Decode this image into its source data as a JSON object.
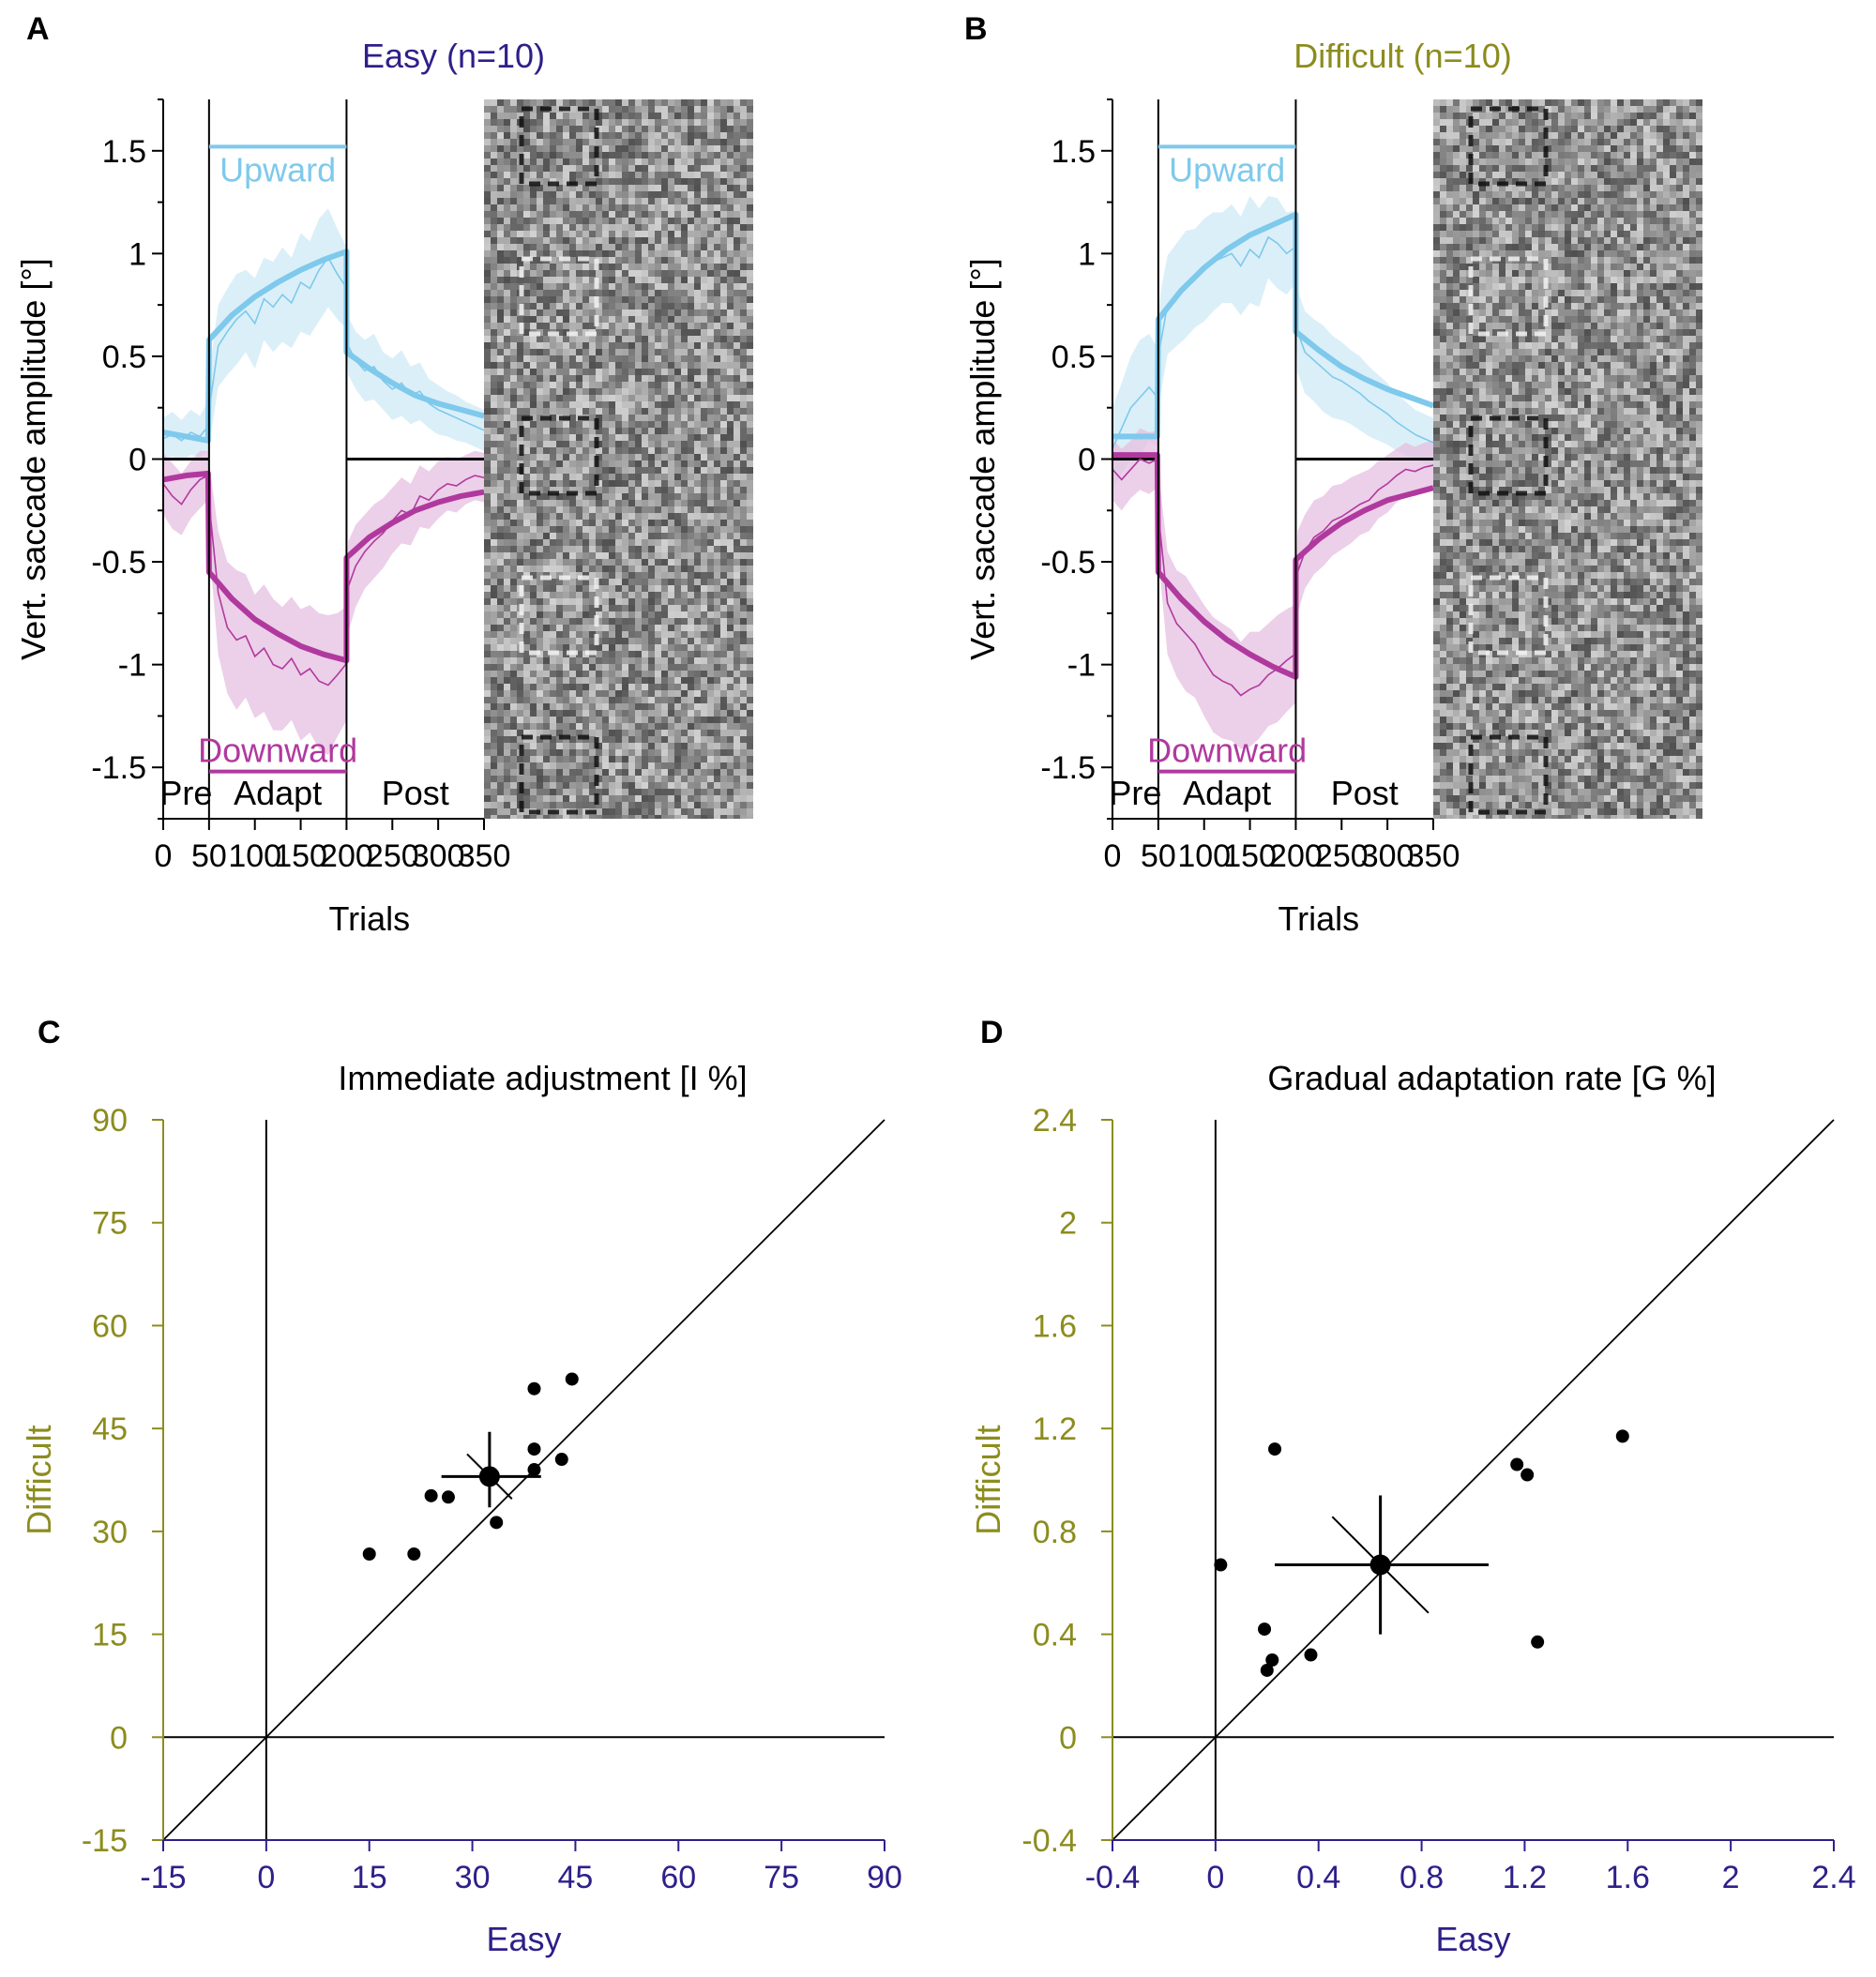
{
  "colors": {
    "easy": "#2e1f8a",
    "difficult": "#8c8c1f",
    "upward": "#7ec9ec",
    "upward_band": "#cfe9f6",
    "downward": "#b0399e",
    "downward_band": "#e6bfe0",
    "axis": "#000000"
  },
  "chart_data": [
    {
      "panel": "A",
      "type": "line",
      "title": "Easy (n=10)",
      "xlabel": "Trials",
      "ylabel": "Vert. saccade amplitude [°]",
      "xlim": [
        0,
        350
      ],
      "ylim": [
        -1.75,
        1.75
      ],
      "xticks": [
        "0",
        "50",
        "100",
        "150",
        "200",
        "250",
        "300",
        "350"
      ],
      "yticks": [
        "1.5",
        "1",
        "0.5",
        "0",
        "-0.5",
        "-1",
        "-1.5"
      ],
      "phase_labels": [
        "Pre",
        "Adapt",
        "Post"
      ],
      "phase_bounds": [
        0,
        50,
        200,
        350
      ],
      "upward_label": "Upward",
      "downward_label": "Downward",
      "upward_target_level": 1.52,
      "downward_target_level": -1.52,
      "series": [
        {
          "name": "Upward fit",
          "segments": [
            {
              "x": [
                0,
                25,
                49
              ],
              "y": [
                0.13,
                0.11,
                0.09
              ]
            },
            {
              "x": [
                50,
                75,
                100,
                125,
                150,
                175,
                200
              ],
              "y": [
                0.58,
                0.7,
                0.79,
                0.86,
                0.92,
                0.97,
                1.01
              ]
            },
            {
              "x": [
                200,
                225,
                250,
                275,
                300,
                325,
                350
              ],
              "y": [
                0.52,
                0.44,
                0.37,
                0.31,
                0.27,
                0.24,
                0.21
              ]
            }
          ]
        },
        {
          "name": "Downward fit",
          "segments": [
            {
              "x": [
                0,
                25,
                49
              ],
              "y": [
                -0.1,
                -0.08,
                -0.07
              ]
            },
            {
              "x": [
                50,
                75,
                100,
                125,
                150,
                175,
                200
              ],
              "y": [
                -0.55,
                -0.68,
                -0.78,
                -0.85,
                -0.91,
                -0.95,
                -0.98
              ]
            },
            {
              "x": [
                200,
                225,
                250,
                275,
                300,
                325,
                350
              ],
              "y": [
                -0.48,
                -0.38,
                -0.31,
                -0.25,
                -0.21,
                -0.18,
                -0.16
              ]
            }
          ]
        },
        {
          "name": "Upward mean",
          "x": [
            0,
            10,
            20,
            30,
            40,
            49,
            52,
            60,
            70,
            80,
            90,
            100,
            110,
            120,
            130,
            140,
            150,
            160,
            170,
            180,
            190,
            199,
            202,
            210,
            220,
            230,
            240,
            250,
            260,
            270,
            280,
            290,
            300,
            310,
            320,
            330,
            340,
            350
          ],
          "y": [
            0.1,
            0.12,
            0.09,
            0.13,
            0.11,
            0.16,
            0.3,
            0.55,
            0.62,
            0.68,
            0.72,
            0.66,
            0.78,
            0.74,
            0.8,
            0.76,
            0.86,
            0.83,
            0.92,
            0.98,
            0.9,
            0.84,
            0.55,
            0.48,
            0.43,
            0.45,
            0.38,
            0.34,
            0.37,
            0.31,
            0.33,
            0.27,
            0.24,
            0.22,
            0.2,
            0.18,
            0.16,
            0.14
          ],
          "sd": [
            0.1,
            0.11,
            0.1,
            0.11,
            0.1,
            0.12,
            0.18,
            0.2,
            0.21,
            0.22,
            0.2,
            0.22,
            0.2,
            0.22,
            0.23,
            0.22,
            0.24,
            0.23,
            0.25,
            0.24,
            0.22,
            0.2,
            0.14,
            0.14,
            0.15,
            0.16,
            0.14,
            0.15,
            0.16,
            0.14,
            0.14,
            0.12,
            0.12,
            0.11,
            0.11,
            0.1,
            0.1,
            0.1
          ]
        },
        {
          "name": "Downward mean",
          "x": [
            0,
            10,
            20,
            30,
            40,
            49,
            52,
            60,
            70,
            80,
            90,
            100,
            110,
            120,
            130,
            140,
            150,
            160,
            170,
            180,
            190,
            199,
            202,
            210,
            220,
            230,
            240,
            250,
            260,
            270,
            280,
            290,
            300,
            310,
            320,
            330,
            340,
            350
          ],
          "y": [
            -0.12,
            -0.18,
            -0.22,
            -0.15,
            -0.1,
            -0.08,
            -0.3,
            -0.65,
            -0.82,
            -0.88,
            -0.86,
            -0.96,
            -0.92,
            -1.0,
            -1.02,
            -0.97,
            -1.05,
            -1.02,
            -1.08,
            -1.1,
            -1.05,
            -1.0,
            -0.62,
            -0.52,
            -0.45,
            -0.4,
            -0.36,
            -0.3,
            -0.25,
            -0.27,
            -0.18,
            -0.2,
            -0.15,
            -0.12,
            -0.13,
            -0.1,
            -0.08,
            -0.09
          ],
          "sd": [
            0.15,
            0.16,
            0.15,
            0.14,
            0.14,
            0.12,
            0.22,
            0.3,
            0.32,
            0.34,
            0.3,
            0.3,
            0.31,
            0.32,
            0.3,
            0.3,
            0.32,
            0.31,
            0.33,
            0.34,
            0.3,
            0.28,
            0.22,
            0.2,
            0.18,
            0.18,
            0.17,
            0.16,
            0.16,
            0.15,
            0.15,
            0.14,
            0.14,
            0.13,
            0.13,
            0.12,
            0.12,
            0.12
          ]
        }
      ]
    },
    {
      "panel": "B",
      "type": "line",
      "title": "Difficult (n=10)",
      "xlabel": "Trials",
      "ylabel": "Vert. saccade amplitude [°]",
      "xlim": [
        0,
        350
      ],
      "ylim": [
        -1.75,
        1.75
      ],
      "xticks": [
        "0",
        "50",
        "100",
        "150",
        "200",
        "250",
        "300",
        "350"
      ],
      "yticks": [
        "1.5",
        "1",
        "0.5",
        "0",
        "-0.5",
        "-1",
        "-1.5"
      ],
      "phase_labels": [
        "Pre",
        "Adapt",
        "Post"
      ],
      "phase_bounds": [
        0,
        50,
        200,
        350
      ],
      "upward_label": "Upward",
      "downward_label": "Downward",
      "upward_target_level": 1.52,
      "downward_target_level": -1.52,
      "series": [
        {
          "name": "Upward fit",
          "segments": [
            {
              "x": [
                0,
                25,
                49
              ],
              "y": [
                0.11,
                0.11,
                0.11
              ]
            },
            {
              "x": [
                50,
                75,
                100,
                125,
                150,
                175,
                200
              ],
              "y": [
                0.68,
                0.82,
                0.93,
                1.02,
                1.09,
                1.14,
                1.19
              ]
            },
            {
              "x": [
                200,
                225,
                250,
                275,
                300,
                325,
                350
              ],
              "y": [
                0.62,
                0.53,
                0.45,
                0.39,
                0.34,
                0.3,
                0.26
              ]
            }
          ]
        },
        {
          "name": "Downward fit",
          "segments": [
            {
              "x": [
                0,
                25,
                49
              ],
              "y": [
                0.02,
                0.02,
                0.02
              ]
            },
            {
              "x": [
                50,
                75,
                100,
                125,
                150,
                175,
                200
              ],
              "y": [
                -0.55,
                -0.68,
                -0.79,
                -0.88,
                -0.95,
                -1.01,
                -1.06
              ]
            },
            {
              "x": [
                200,
                225,
                250,
                275,
                300,
                325,
                350
              ],
              "y": [
                -0.49,
                -0.39,
                -0.31,
                -0.25,
                -0.2,
                -0.17,
                -0.14
              ]
            }
          ]
        },
        {
          "name": "Upward mean",
          "x": [
            0,
            10,
            20,
            30,
            40,
            49,
            52,
            60,
            70,
            80,
            90,
            100,
            110,
            120,
            130,
            140,
            150,
            160,
            170,
            180,
            190,
            199,
            202,
            210,
            220,
            230,
            240,
            250,
            260,
            270,
            280,
            290,
            300,
            310,
            320,
            330,
            340,
            350
          ],
          "y": [
            0.05,
            0.15,
            0.25,
            0.3,
            0.35,
            0.3,
            0.55,
            0.75,
            0.8,
            0.85,
            0.88,
            0.92,
            0.96,
            0.98,
            1.0,
            0.94,
            1.02,
            0.98,
            1.08,
            1.05,
            1.0,
            1.03,
            0.62,
            0.52,
            0.48,
            0.44,
            0.4,
            0.38,
            0.35,
            0.32,
            0.28,
            0.25,
            0.22,
            0.18,
            0.15,
            0.12,
            0.1,
            0.08
          ],
          "sd": [
            0.2,
            0.22,
            0.25,
            0.28,
            0.26,
            0.24,
            0.25,
            0.24,
            0.25,
            0.26,
            0.24,
            0.25,
            0.24,
            0.22,
            0.24,
            0.24,
            0.26,
            0.24,
            0.2,
            0.22,
            0.2,
            0.18,
            0.2,
            0.2,
            0.2,
            0.21,
            0.2,
            0.19,
            0.18,
            0.18,
            0.17,
            0.16,
            0.15,
            0.14,
            0.13,
            0.12,
            0.12,
            0.12
          ]
        },
        {
          "name": "Downward mean",
          "x": [
            0,
            10,
            20,
            30,
            40,
            49,
            52,
            60,
            70,
            80,
            90,
            100,
            110,
            120,
            130,
            140,
            150,
            160,
            170,
            180,
            190,
            199,
            202,
            210,
            220,
            230,
            240,
            250,
            260,
            270,
            280,
            290,
            300,
            310,
            320,
            330,
            340,
            350
          ],
          "y": [
            -0.05,
            -0.1,
            -0.05,
            0.0,
            -0.02,
            0.0,
            -0.35,
            -0.7,
            -0.8,
            -0.85,
            -0.9,
            -0.98,
            -1.05,
            -1.08,
            -1.1,
            -1.15,
            -1.12,
            -1.1,
            -1.05,
            -1.02,
            -0.98,
            -0.95,
            -0.55,
            -0.45,
            -0.38,
            -0.35,
            -0.3,
            -0.28,
            -0.25,
            -0.22,
            -0.2,
            -0.15,
            -0.12,
            -0.08,
            -0.05,
            -0.06,
            -0.04,
            -0.03
          ],
          "sd": [
            0.15,
            0.15,
            0.14,
            0.15,
            0.15,
            0.14,
            0.22,
            0.25,
            0.26,
            0.28,
            0.26,
            0.27,
            0.28,
            0.28,
            0.27,
            0.26,
            0.28,
            0.26,
            0.25,
            0.26,
            0.25,
            0.24,
            0.2,
            0.18,
            0.18,
            0.17,
            0.17,
            0.16,
            0.16,
            0.15,
            0.15,
            0.14,
            0.14,
            0.13,
            0.13,
            0.12,
            0.12,
            0.12
          ]
        }
      ]
    },
    {
      "panel": "C",
      "type": "scatter",
      "title": "Immediate adjustment [I %]",
      "xlabel": "Easy",
      "ylabel": "Difficult",
      "xlim": [
        -15,
        90
      ],
      "ylim": [
        -15,
        90
      ],
      "xticks": [
        "-15",
        "0",
        "15",
        "30",
        "45",
        "60",
        "75",
        "90"
      ],
      "yticks": [
        "90",
        "75",
        "60",
        "45",
        "30",
        "15",
        "0",
        "-15"
      ],
      "points": [
        {
          "x": 15,
          "y": 26.7
        },
        {
          "x": 21.5,
          "y": 26.7
        },
        {
          "x": 24,
          "y": 35.2
        },
        {
          "x": 26.5,
          "y": 35
        },
        {
          "x": 33.5,
          "y": 31.3
        },
        {
          "x": 39,
          "y": 39
        },
        {
          "x": 39,
          "y": 42
        },
        {
          "x": 39,
          "y": 50.8
        },
        {
          "x": 43,
          "y": 40.5
        },
        {
          "x": 44.5,
          "y": 52.2
        }
      ],
      "mean": {
        "x": 32.5,
        "y": 38,
        "x_err": [
          25.5,
          40
        ],
        "y_err": [
          33.5,
          44.5
        ]
      },
      "diagonal": true
    },
    {
      "panel": "D",
      "type": "scatter",
      "title": "Gradual adaptation rate [G %]",
      "xlabel": "Easy",
      "ylabel": "Difficult",
      "xlim": [
        -0.4,
        2.4
      ],
      "ylim": [
        -0.4,
        2.4
      ],
      "xticks": [
        "-0.4",
        "0",
        "0.4",
        "0.8",
        "1.2",
        "1.6",
        "2",
        "2.4"
      ],
      "yticks": [
        "2.4",
        "2",
        "1.6",
        "1.2",
        "0.8",
        "0.4",
        "0",
        "-0.4"
      ],
      "points": [
        {
          "x": 0.02,
          "y": 0.67
        },
        {
          "x": 0.19,
          "y": 0.42
        },
        {
          "x": 0.2,
          "y": 0.26
        },
        {
          "x": 0.22,
          "y": 0.3
        },
        {
          "x": 0.23,
          "y": 1.12
        },
        {
          "x": 0.37,
          "y": 0.32
        },
        {
          "x": 1.17,
          "y": 1.06
        },
        {
          "x": 1.21,
          "y": 1.02
        },
        {
          "x": 1.25,
          "y": 0.37
        },
        {
          "x": 1.58,
          "y": 1.17
        }
      ],
      "mean": {
        "x": 0.64,
        "y": 0.67,
        "x_err": [
          0.23,
          1.06
        ],
        "y_err": [
          0.4,
          0.94
        ]
      },
      "diagonal": true
    }
  ]
}
